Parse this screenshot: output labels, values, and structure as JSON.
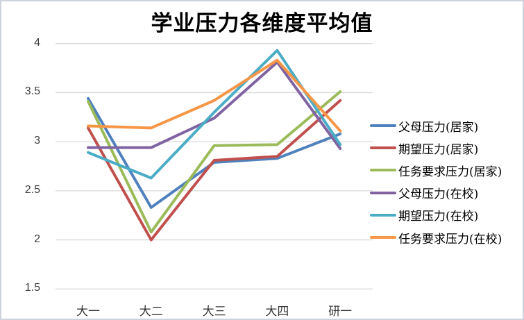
{
  "window": {
    "background": "#ffffff",
    "border_color": "#ccd3dc"
  },
  "chart_data": {
    "type": "line",
    "title": "学业压力各维度平均值",
    "categories": [
      "大一",
      "大二",
      "大三",
      "大四",
      "研一"
    ],
    "series": [
      {
        "name": "父母压力(居家)",
        "color": "#4F81BD",
        "values": [
          3.44,
          2.33,
          2.79,
          2.83,
          3.08
        ]
      },
      {
        "name": "期望压力(居家)",
        "color": "#C0504D",
        "values": [
          3.14,
          2.0,
          2.81,
          2.85,
          3.42
        ]
      },
      {
        "name": "任务要求压力(居家)",
        "color": "#9BBB59",
        "values": [
          3.41,
          2.08,
          2.96,
          2.97,
          3.51
        ]
      },
      {
        "name": "父母压力(在校)",
        "color": "#8064A2",
        "values": [
          2.94,
          2.94,
          3.24,
          3.81,
          2.93
        ]
      },
      {
        "name": "期望压力(在校)",
        "color": "#4BACC6",
        "values": [
          2.89,
          2.63,
          3.3,
          3.93,
          2.97
        ]
      },
      {
        "name": "任务要求压力(在校)",
        "color": "#F79646",
        "values": [
          3.16,
          3.14,
          3.42,
          3.83,
          3.11
        ]
      }
    ],
    "y_axis": {
      "min": 1.5,
      "max": 4,
      "step": 0.5,
      "tick_labels": [
        "4",
        "3.5",
        "3",
        "2.5",
        "2",
        "1.5"
      ]
    },
    "x_axis": {
      "tick_labels": [
        "大一",
        "大二",
        "大三",
        "大四",
        "研一"
      ]
    },
    "grid": true,
    "gridline_color": "#d9d9d9",
    "legend_position": "right",
    "line_width": 4
  }
}
